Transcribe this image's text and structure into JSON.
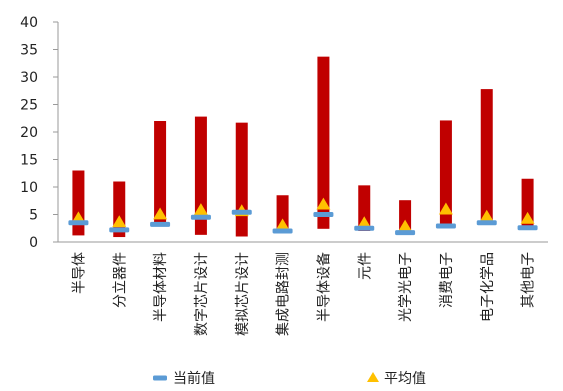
{
  "chart_data": {
    "type": "bar",
    "title": "",
    "xlabel": "",
    "ylabel": "",
    "ylim": [
      0,
      40
    ],
    "yticks": [
      0,
      5,
      10,
      15,
      20,
      25,
      30,
      35,
      40
    ],
    "grid": false,
    "categories": [
      "半导体",
      "分立器件",
      "半导体材料",
      "数字芯片设计",
      "模拟芯片设计",
      "集成电路封测",
      "半导体设备",
      "元件",
      "光学光电子",
      "消费电子",
      "电子化学品",
      "其他电子"
    ],
    "range_bars": {
      "color": "#c00000",
      "low": [
        1.2,
        0.9,
        3.0,
        1.3,
        1.0,
        2.0,
        2.4,
        2.0,
        1.4,
        2.6,
        3.3,
        2.3
      ],
      "high": [
        13.0,
        11.0,
        22.0,
        22.8,
        21.7,
        8.5,
        33.7,
        10.3,
        7.6,
        22.1,
        27.8,
        11.5
      ]
    },
    "series": [
      {
        "name": "当前值",
        "marker": "dash",
        "color": "#5b9bd5",
        "values": [
          3.5,
          2.2,
          3.2,
          4.5,
          5.4,
          2.0,
          5.0,
          2.5,
          1.7,
          2.9,
          3.5,
          2.6
        ]
      },
      {
        "name": "平均值",
        "marker": "triangle",
        "color": "#ffc000",
        "values": [
          4.3,
          3.6,
          5.0,
          5.8,
          5.6,
          3.0,
          6.8,
          3.4,
          2.8,
          5.9,
          4.6,
          4.2
        ]
      }
    ],
    "legend_position": "bottom"
  }
}
